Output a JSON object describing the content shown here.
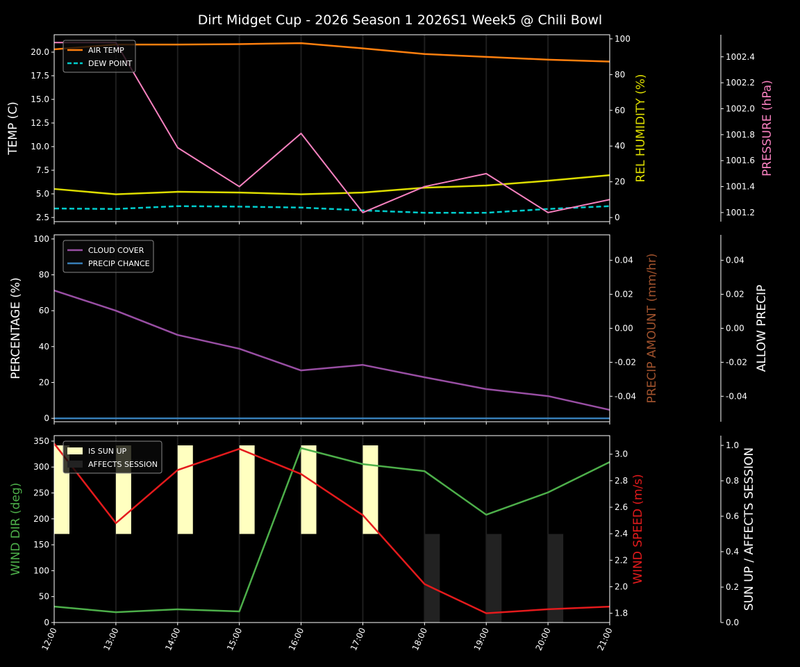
{
  "title": "Dirt Midget Cup - 2026 Season 1 2026S1 Week5 @ Chili Bowl",
  "x_labels": [
    "12:00",
    "13:00",
    "14:00",
    "15:00",
    "16:00",
    "17:00",
    "18:00",
    "19:00",
    "20:00",
    "21:00"
  ],
  "chart_data": [
    {
      "type": "line",
      "legend": "upper-left",
      "axes": {
        "left": {
          "label": "TEMP (C)",
          "color": "#ffffff",
          "ylim": [
            2.06,
            21.84
          ],
          "ticks": [
            "2.5",
            "5.0",
            "7.5",
            "10.0",
            "12.5",
            "15.0",
            "17.5",
            "20.0"
          ]
        },
        "right1": {
          "label": "REL HUMIDITY (%)",
          "color": "#dddd00",
          "ylim": [
            -2.3,
            102.3
          ],
          "ticks": [
            "0",
            "20",
            "40",
            "60",
            "80",
            "100"
          ]
        },
        "right2": {
          "label": "PRESSURE (hPa)",
          "color": "#f781bf",
          "ylim": [
            1001.13,
            1002.57
          ],
          "ticks": [
            "1001.2",
            "1001.4",
            "1001.6",
            "1001.8",
            "1002.0",
            "1002.2",
            "1002.4"
          ]
        }
      },
      "series": [
        {
          "name": "AIR TEMP",
          "axis": "left",
          "color": "#ff7f0e",
          "dash": false,
          "legend": true,
          "values": [
            20.3,
            20.8,
            20.8,
            20.85,
            20.95,
            20.4,
            19.8,
            19.5,
            19.2,
            19.0
          ]
        },
        {
          "name": "DEW POINT",
          "axis": "left",
          "color": "#00cccc",
          "dash": true,
          "legend": true,
          "values": [
            3.45,
            3.4,
            3.7,
            3.65,
            3.55,
            3.25,
            3.0,
            3.0,
            3.4,
            3.7
          ]
        },
        {
          "axis": "right1",
          "color": "#dddd00",
          "dash": false,
          "legend": false,
          "values": [
            16,
            13,
            14.4,
            14,
            13,
            14,
            16.7,
            17.9,
            20.6,
            23.7
          ]
        },
        {
          "axis": "right2",
          "color": "#f781bf",
          "dash": false,
          "legend": false,
          "thin": true,
          "values": [
            1002.51,
            1002.51,
            1001.7,
            1001.4,
            1001.81,
            1001.2,
            1001.4,
            1001.5,
            1001.2,
            1001.3
          ]
        }
      ]
    },
    {
      "type": "line",
      "legend": "upper-left",
      "axes": {
        "left": {
          "label": "PERCENTAGE (%)",
          "color": "#ffffff",
          "ylim": [
            -1.9,
            102.3
          ],
          "ticks": [
            "0",
            "20",
            "40",
            "60",
            "80",
            "100"
          ]
        },
        "right1": {
          "label": "PRECIP AMOUNT (mm/hr)",
          "color": "#a0522d",
          "ylim": [
            -0.055,
            0.055
          ],
          "ticks": [
            "-0.04",
            "-0.02",
            "0.00",
            "0.02",
            "0.04"
          ]
        },
        "right2": {
          "label": "ALLOW PRECIP",
          "color": "#ffffff",
          "ylim": [
            -0.055,
            0.055
          ],
          "ticks": [
            "-0.04",
            "-0.02",
            "0.00",
            "0.02",
            "0.04"
          ]
        }
      },
      "series": [
        {
          "name": "CLOUD COVER",
          "axis": "left",
          "color": "#984ea3",
          "dash": false,
          "legend": true,
          "values": [
            71.3,
            60,
            46.5,
            38.8,
            26.7,
            29.8,
            22.9,
            16.3,
            12.4,
            4.7
          ]
        },
        {
          "name": "PRECIP CHANCE",
          "axis": "left",
          "color": "#377eb8",
          "dash": false,
          "legend": true,
          "values": [
            0,
            0,
            0,
            0,
            0,
            0,
            0,
            0,
            0,
            0
          ]
        }
      ]
    },
    {
      "type": "line",
      "legend": "upper-left",
      "axes": {
        "left": {
          "label": "WIND DIR (deg)",
          "color": "#4daf4a",
          "ylim": [
            0,
            360.6
          ],
          "ticks": [
            "0",
            "50",
            "100",
            "150",
            "200",
            "250",
            "300",
            "350"
          ]
        },
        "right1": {
          "label": "WIND SPEED (m/s)",
          "color": "#e41a1c",
          "ylim": [
            1.73,
            3.14
          ],
          "ticks": [
            "1.8",
            "2.0",
            "2.2",
            "2.4",
            "2.6",
            "2.8",
            "3.0"
          ]
        },
        "right2": {
          "label": "SUN UP / AFFECTS SESSION",
          "color": "#ffffff",
          "ylim": [
            0,
            1.055
          ],
          "ticks": [
            "0.0",
            "0.2",
            "0.4",
            "0.6",
            "0.8",
            "1.0"
          ]
        }
      },
      "bars": [
        {
          "name": "IS SUN UP",
          "color": "#ffffc0",
          "from": 0.5,
          "values": [
            0.5,
            0.5,
            0.5,
            0.5,
            0.5,
            0.5,
            0,
            0,
            0,
            0
          ]
        },
        {
          "name": "AFFECTS SESSION",
          "color": "#222222",
          "from": 0,
          "values": [
            0,
            0,
            0,
            0,
            0,
            0,
            0.5,
            0.5,
            0.5,
            0
          ]
        }
      ],
      "series": [
        {
          "axis": "left",
          "color": "#4daf4a",
          "dash": false,
          "legend": false,
          "values": [
            30.8,
            20,
            25.5,
            21.5,
            336.5,
            305.6,
            292,
            208,
            251,
            309.6
          ]
        },
        {
          "axis": "right1",
          "color": "#e41a1c",
          "dash": false,
          "legend": false,
          "values": [
            3.08,
            2.48,
            2.88,
            3.04,
            2.85,
            2.54,
            2.02,
            1.8,
            1.83,
            1.85
          ]
        }
      ]
    }
  ]
}
